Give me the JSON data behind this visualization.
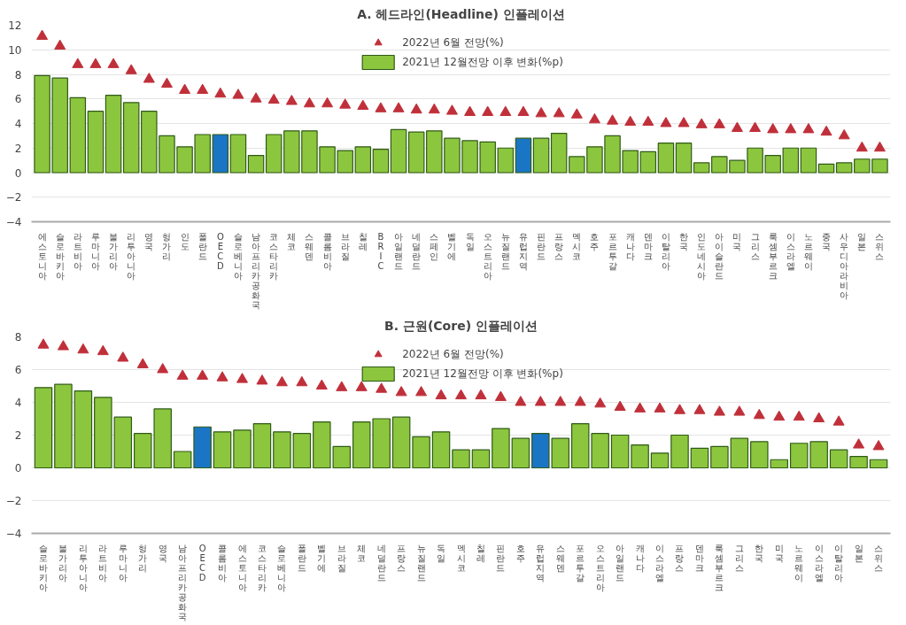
{
  "chart_data": [
    {
      "type": "bar",
      "title": "A. 헤드라인(Headline) 인플레이션",
      "categories": [
        "에스토니아",
        "슬로바키아",
        "라트비아",
        "루마니아",
        "불가리아",
        "리투아니아",
        "영국",
        "헝가리",
        "인도",
        "폴란드",
        "OECD",
        "슬로베니아",
        "남아프리카공화국",
        "코스타리카",
        "체코",
        "스웨덴",
        "콜롬비아",
        "브라질",
        "칠레",
        "BRIC",
        "아일랜드",
        "네덜란드",
        "스페인",
        "벨기에",
        "독일",
        "오스트리아",
        "뉴질랜드",
        "유럽지역",
        "핀란드",
        "프랑스",
        "멕시코",
        "호주",
        "포르투갈",
        "캐나다",
        "덴마크",
        "이탈리아",
        "한국",
        "인도네시아",
        "아이슬란드",
        "미국",
        "그리스",
        "룩셈부르크",
        "이스라엘",
        "노르웨이",
        "중국",
        "사우디아라비아",
        "일본",
        "스위스"
      ],
      "series": [
        {
          "name": "2022년 6월 전망(%)",
          "type": "scatter",
          "marker": "triangle",
          "color": "#c0303a",
          "values": [
            11.1,
            10.3,
            8.8,
            8.8,
            8.8,
            8.3,
            7.6,
            7.2,
            6.7,
            6.7,
            6.4,
            6.3,
            6.0,
            5.9,
            5.8,
            5.6,
            5.6,
            5.5,
            5.4,
            5.2,
            5.2,
            5.1,
            5.1,
            5.0,
            4.9,
            4.9,
            4.9,
            4.9,
            4.8,
            4.8,
            4.7,
            4.3,
            4.2,
            4.1,
            4.1,
            4.0,
            4.0,
            3.9,
            3.9,
            3.6,
            3.6,
            3.5,
            3.5,
            3.5,
            3.3,
            3.0,
            2.0,
            2.0
          ]
        },
        {
          "name": "2021년 12월전망 이후 변화(%p)",
          "colors": [
            "#8cc63e",
            "#8cc63e",
            "#8cc63e",
            "#8cc63e",
            "#8cc63e",
            "#8cc63e",
            "#8cc63e",
            "#8cc63e",
            "#8cc63e",
            "#8cc63e",
            "#1a75c4",
            "#8cc63e",
            "#8cc63e",
            "#8cc63e",
            "#8cc63e",
            "#8cc63e",
            "#8cc63e",
            "#8cc63e",
            "#8cc63e",
            "#8cc63e",
            "#8cc63e",
            "#8cc63e",
            "#8cc63e",
            "#8cc63e",
            "#8cc63e",
            "#8cc63e",
            "#8cc63e",
            "#1a75c4",
            "#8cc63e",
            "#8cc63e",
            "#8cc63e",
            "#8cc63e",
            "#8cc63e",
            "#8cc63e",
            "#8cc63e",
            "#8cc63e",
            "#8cc63e",
            "#8cc63e",
            "#8cc63e",
            "#8cc63e",
            "#8cc63e",
            "#8cc63e",
            "#8cc63e",
            "#8cc63e",
            "#8cc63e",
            "#8cc63e",
            "#8cc63e",
            "#8cc63e"
          ],
          "values": [
            7.9,
            7.7,
            6.1,
            5.0,
            6.3,
            5.7,
            5.0,
            3.0,
            2.1,
            3.1,
            3.1,
            3.1,
            1.4,
            3.1,
            3.4,
            3.4,
            2.1,
            1.8,
            2.1,
            1.9,
            3.5,
            3.3,
            3.4,
            2.8,
            2.6,
            2.5,
            2.0,
            2.8,
            2.8,
            3.2,
            1.3,
            2.1,
            3.0,
            1.8,
            1.7,
            2.4,
            2.4,
            0.8,
            1.3,
            1.0,
            2.0,
            1.4,
            2.0,
            2.0,
            0.7,
            0.8,
            1.1,
            1.1
          ]
        }
      ],
      "ylim": [
        -4,
        12
      ],
      "yticks": [
        -4,
        -2,
        0,
        2,
        4,
        6,
        8,
        10,
        12
      ],
      "grid": "y",
      "legend": "top"
    },
    {
      "type": "bar",
      "title": "B. 근원(Core) 인플레이션",
      "categories": [
        "슬로바키아",
        "불가리아",
        "리투아니아",
        "라트비아",
        "루마니아",
        "헝가리",
        "영국",
        "남아프리카공화국",
        "OECD",
        "콜롬비아",
        "에스토니아",
        "코스타리카",
        "슬로베니아",
        "폴란드",
        "벨기에",
        "브라질",
        "체코",
        "네덜란드",
        "프랑스",
        "뉴질랜드",
        "독일",
        "멕시코",
        "칠레",
        "핀란드",
        "호주",
        "유럽지역",
        "스웨덴",
        "포르투갈",
        "오스트리아",
        "아일랜드",
        "캐나다",
        "이스라엘",
        "프랑스",
        "덴마크",
        "룩셈부르크",
        "그리스",
        "한국",
        "미국",
        "노르웨이",
        "이스라엘",
        "이탈리아",
        "일본",
        "스위스"
      ],
      "series": [
        {
          "name": "2022년 6월 전망(%)",
          "type": "scatter",
          "marker": "triangle",
          "color": "#c0303a",
          "values": [
            7.5,
            7.4,
            7.2,
            7.1,
            6.7,
            6.3,
            6.0,
            5.6,
            5.6,
            5.5,
            5.4,
            5.3,
            5.2,
            5.2,
            5.0,
            4.9,
            4.9,
            4.8,
            4.6,
            4.6,
            4.4,
            4.4,
            4.4,
            4.3,
            4.0,
            4.0,
            4.0,
            4.0,
            3.9,
            3.7,
            3.6,
            3.6,
            3.5,
            3.5,
            3.4,
            3.4,
            3.2,
            3.1,
            3.1,
            3.0,
            2.8,
            1.4,
            1.3
          ]
        },
        {
          "name": "2021년 12월전망 이후 변화(%p)",
          "colors": [
            "#8cc63e",
            "#8cc63e",
            "#8cc63e",
            "#8cc63e",
            "#8cc63e",
            "#8cc63e",
            "#8cc63e",
            "#8cc63e",
            "#1a75c4",
            "#8cc63e",
            "#8cc63e",
            "#8cc63e",
            "#8cc63e",
            "#8cc63e",
            "#8cc63e",
            "#8cc63e",
            "#8cc63e",
            "#8cc63e",
            "#8cc63e",
            "#8cc63e",
            "#8cc63e",
            "#8cc63e",
            "#8cc63e",
            "#8cc63e",
            "#8cc63e",
            "#1a75c4",
            "#8cc63e",
            "#8cc63e",
            "#8cc63e",
            "#8cc63e",
            "#8cc63e",
            "#8cc63e",
            "#8cc63e",
            "#8cc63e",
            "#8cc63e",
            "#8cc63e",
            "#8cc63e",
            "#8cc63e",
            "#8cc63e",
            "#8cc63e",
            "#8cc63e",
            "#8cc63e",
            "#8cc63e"
          ],
          "values": [
            4.9,
            5.1,
            4.7,
            4.3,
            3.1,
            2.1,
            3.6,
            1.0,
            2.5,
            2.2,
            2.3,
            2.7,
            2.2,
            2.1,
            2.8,
            1.3,
            2.8,
            3.0,
            3.1,
            1.9,
            2.2,
            1.1,
            1.1,
            2.4,
            1.8,
            2.1,
            1.8,
            2.7,
            2.1,
            2.0,
            1.4,
            0.9,
            2.0,
            1.2,
            1.3,
            1.8,
            1.6,
            0.5,
            1.5,
            1.6,
            1.1,
            0.7,
            0.5
          ]
        }
      ],
      "ylim": [
        -4,
        8
      ],
      "yticks": [
        -4,
        -2,
        0,
        2,
        4,
        6,
        8
      ],
      "grid": "y",
      "legend": "top"
    }
  ]
}
